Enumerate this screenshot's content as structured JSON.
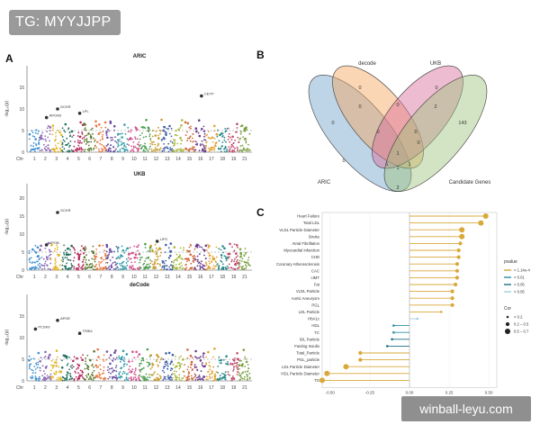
{
  "header": {
    "tag": "TG: MYYJJPP"
  },
  "watermark": {
    "text": "winball-leyu.com"
  },
  "panels": {
    "a": "A",
    "b": "B",
    "c": "C"
  },
  "colors": {
    "chromosomes": [
      "#3a8fd1",
      "#8a6bb5",
      "#e3b52a",
      "#1f6e5f",
      "#b72d5d",
      "#5a7a2e",
      "#e8783c",
      "#6b4fa0",
      "#2e9aa8",
      "#d14f8a",
      "#4a9c4e",
      "#c79a2b",
      "#3f5fa8",
      "#a8b83a",
      "#d1693a",
      "#6a3b8c",
      "#e0a030",
      "#2a8a8a",
      "#c04a6a",
      "#7aa040",
      "#4a6ac0"
    ],
    "venn_decode": "#f4a35a",
    "venn_ukb": "#d96a9a",
    "venn_aric": "#6e9fc9",
    "venn_candidate": "#9cc47a",
    "lollipop_main": "#d9a83a",
    "lollipop_small": "#2e8fa8"
  },
  "chart_data": [
    {
      "type": "scatter",
      "title": "ARIC",
      "ylabel": "-log₁₀(p)",
      "xlabel_prefix": "Chr",
      "ylim": [
        0,
        20
      ],
      "yticks": [
        "0",
        "5",
        "10",
        "15"
      ],
      "ytick_values": [
        0,
        5,
        10,
        15
      ],
      "xticks": [
        "1",
        "2",
        "3",
        "4",
        "5",
        "6",
        "7",
        "8",
        "9",
        "10",
        "11",
        "12",
        "13",
        "14",
        "15",
        "16",
        "17",
        "18",
        "19",
        "21"
      ],
      "threshold": 5,
      "labels": [
        {
          "text": "APOA5",
          "chr": 2,
          "y": 8
        },
        {
          "text": "GCKR",
          "chr": 3,
          "y": 10
        },
        {
          "text": "LPL",
          "chr": 5,
          "y": 9
        },
        {
          "text": "CETP",
          "chr": 16,
          "y": 13
        }
      ]
    },
    {
      "type": "scatter",
      "title": "UKB",
      "ylabel": "-log₁₀(p)",
      "xlabel_prefix": "Chr",
      "ylim": [
        0,
        24
      ],
      "yticks": [
        "0",
        "5",
        "10",
        "15",
        "20"
      ],
      "ytick_values": [
        0,
        5,
        10,
        15,
        20
      ],
      "xticks": [
        "1",
        "2",
        "3",
        "4",
        "5",
        "6",
        "7",
        "8",
        "9",
        "10",
        "11",
        "12",
        "13",
        "14",
        "15",
        "16",
        "17",
        "18",
        "19",
        "21"
      ],
      "threshold": 5,
      "labels": [
        {
          "text": "GCKR",
          "chr": 3,
          "y": 16
        },
        {
          "text": "APOB",
          "chr": 2,
          "y": 7
        },
        {
          "text": "LIPC",
          "chr": 12,
          "y": 8
        }
      ]
    },
    {
      "type": "scatter",
      "title": "deCode",
      "ylabel": "-log₁₀(p)",
      "xlabel_prefix": "Chr",
      "ylim": [
        0,
        20
      ],
      "yticks": [
        "0",
        "5",
        "10",
        "15"
      ],
      "ytick_values": [
        0,
        5,
        10,
        15
      ],
      "xticks": [
        "1",
        "2",
        "3",
        "4",
        "5",
        "6",
        "7",
        "8",
        "9",
        "10",
        "11",
        "12",
        "13",
        "14",
        "15",
        "16",
        "17",
        "18",
        "19",
        "21"
      ],
      "threshold": 5,
      "labels": [
        {
          "text": "PCSK9",
          "chr": 1,
          "y": 12
        },
        {
          "text": "APOE",
          "chr": 3,
          "y": 14
        },
        {
          "text": "TRIB1",
          "chr": 5,
          "y": 11
        }
      ]
    },
    {
      "type": "venn",
      "sets": [
        "decode",
        "UKB",
        "ARIC",
        "Candidate Genes"
      ],
      "region_counts": {
        "decode_only": "0",
        "ukb_only": "0",
        "aric_only": "0",
        "candidate_only": "143",
        "decode_ukb": "0",
        "aric_decode": "0",
        "ukb_candidate": "2",
        "aric_candidate": "2",
        "decode_candidate": "0",
        "aric_ukb": "1",
        "aric_decode_ukb": "0",
        "decode_ukb_candidate": "0",
        "aric_decode_candidate": "1",
        "aric_ukb_candidate": "1",
        "all": "1",
        "aric_decode_outer": "0"
      }
    },
    {
      "type": "lollipop",
      "xlabel": "Cor",
      "xlim": [
        -0.55,
        0.55
      ],
      "xticks": [
        "-0.50",
        "-0.25",
        "0.00",
        "0.25",
        "0.50"
      ],
      "xtick_values": [
        -0.5,
        -0.25,
        0,
        0.25,
        0.5
      ],
      "categories": [
        "Heart Failure",
        "Total LDL",
        "VLDL Particle Diameter",
        "Stroke",
        "Atrial Fibrillation",
        "Myocardial Infarction",
        "CHD",
        "Coronary Atherosclerosis",
        "CAC",
        "cIMT",
        "Fat",
        "VLDL Particle",
        "Aortic Aneurysm",
        "PGL",
        "LDL Particle",
        "HbA1c",
        "HDL",
        "TC",
        "IDL Particle",
        "Fasting Insulin",
        "Total_Particle",
        "PGL_particle",
        "LDL Particle Diameter",
        "HDL Particle Diameter",
        "TG"
      ],
      "values": [
        0.48,
        0.45,
        0.33,
        0.33,
        0.32,
        0.31,
        0.31,
        0.3,
        0.3,
        0.3,
        0.29,
        0.27,
        0.27,
        0.27,
        0.2,
        0.05,
        -0.1,
        -0.1,
        -0.11,
        -0.14,
        -0.31,
        -0.31,
        -0.4,
        -0.52,
        -0.55
      ],
      "sizes": [
        3,
        3,
        3,
        3,
        2,
        2,
        2,
        2,
        2,
        2,
        2,
        2,
        2,
        2,
        1,
        1,
        1,
        1,
        1,
        1,
        2,
        2,
        3,
        3,
        3
      ],
      "pvalue_group": [
        0,
        0,
        0,
        0,
        0,
        0,
        0,
        0,
        0,
        0,
        0,
        0,
        0,
        0,
        0,
        3,
        1,
        1,
        2,
        2,
        0,
        0,
        0,
        0,
        0
      ],
      "legend_pvalue_title": "pvalue",
      "legend_pvalue": [
        "< 1.14e-4",
        "< 0.01",
        "< 0.05",
        "> 0.05"
      ],
      "legend_cor_title": "Cor",
      "legend_cor": [
        "< 0.2",
        "0.2 – 0.5",
        "0.5 – 0.7"
      ]
    }
  ]
}
